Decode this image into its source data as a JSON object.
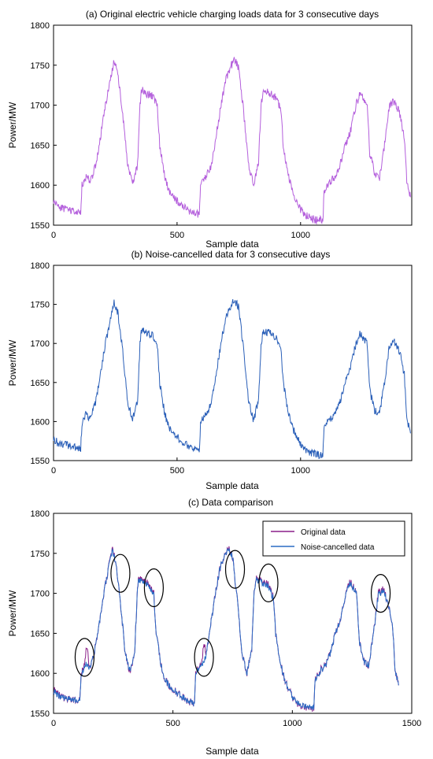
{
  "chart_data": [
    {
      "type": "line",
      "title": "(a) Original electric vehicle charging loads data for 3 consecutive days",
      "xlabel": "Sample data",
      "ylabel": "Power/MW",
      "xlim": [
        0,
        1450
      ],
      "ylim": [
        1550,
        1800
      ],
      "xticks": [
        0,
        500,
        1000
      ],
      "yticks": [
        1550,
        1600,
        1650,
        1700,
        1750,
        1800
      ],
      "series": [
        {
          "color": "#b45fdc",
          "x": [
            0,
            20,
            50,
            80,
            110,
            115,
            130,
            150,
            170,
            190,
            210,
            230,
            245,
            260,
            280,
            300,
            320,
            340,
            350,
            355,
            370,
            400,
            420,
            430,
            450,
            470,
            500,
            530,
            560,
            590,
            595,
            600,
            620,
            640,
            660,
            680,
            700,
            720,
            735,
            750,
            770,
            790,
            810,
            830,
            840,
            850,
            870,
            900,
            920,
            930,
            950,
            970,
            1000,
            1030,
            1060,
            1090,
            1095,
            1100,
            1120,
            1140,
            1160,
            1180,
            1200,
            1220,
            1240,
            1270,
            1280,
            1300,
            1320,
            1340,
            1360,
            1380,
            1400,
            1420,
            1430,
            1445
          ],
          "values": [
            1580,
            1573,
            1570,
            1567,
            1565,
            1600,
            1610,
            1605,
            1625,
            1660,
            1700,
            1730,
            1755,
            1740,
            1690,
            1625,
            1600,
            1625,
            1700,
            1720,
            1715,
            1712,
            1700,
            1650,
            1610,
            1590,
            1580,
            1572,
            1566,
            1563,
            1600,
            1605,
            1612,
            1625,
            1665,
            1705,
            1735,
            1750,
            1757,
            1745,
            1690,
            1625,
            1600,
            1630,
            1700,
            1718,
            1715,
            1710,
            1695,
            1650,
            1612,
            1590,
            1570,
            1560,
            1557,
            1556,
            1590,
            1595,
            1605,
            1610,
            1625,
            1650,
            1665,
            1695,
            1715,
            1700,
            1640,
            1615,
            1610,
            1650,
            1700,
            1705,
            1690,
            1660,
            1605,
            1585
          ]
        }
      ]
    },
    {
      "type": "line",
      "title": "(b) Noise-cancelled data for 3 consecutive days",
      "xlabel": "Sample data",
      "ylabel": "Power/MW",
      "xlim": [
        0,
        1450
      ],
      "ylim": [
        1550,
        1800
      ],
      "xticks": [
        0,
        500,
        1000
      ],
      "yticks": [
        1550,
        1600,
        1650,
        1700,
        1750,
        1800
      ],
      "series": [
        {
          "color": "#2a5fb8",
          "x": [
            0,
            20,
            50,
            80,
            110,
            115,
            130,
            150,
            170,
            190,
            210,
            230,
            245,
            260,
            280,
            300,
            320,
            340,
            350,
            355,
            370,
            400,
            420,
            430,
            450,
            470,
            500,
            530,
            560,
            590,
            595,
            600,
            620,
            640,
            660,
            680,
            700,
            720,
            735,
            750,
            770,
            790,
            810,
            830,
            840,
            850,
            870,
            900,
            920,
            930,
            950,
            970,
            1000,
            1030,
            1060,
            1090,
            1095,
            1100,
            1120,
            1140,
            1160,
            1180,
            1200,
            1220,
            1240,
            1270,
            1280,
            1300,
            1320,
            1340,
            1360,
            1380,
            1400,
            1420,
            1430,
            1445
          ],
          "values": [
            1578,
            1572,
            1570,
            1567,
            1565,
            1598,
            1608,
            1605,
            1625,
            1660,
            1700,
            1730,
            1753,
            1740,
            1690,
            1625,
            1602,
            1625,
            1700,
            1718,
            1714,
            1710,
            1698,
            1650,
            1610,
            1590,
            1580,
            1572,
            1566,
            1563,
            1598,
            1604,
            1610,
            1625,
            1665,
            1705,
            1735,
            1750,
            1755,
            1745,
            1690,
            1625,
            1600,
            1630,
            1700,
            1717,
            1714,
            1708,
            1694,
            1650,
            1612,
            1590,
            1570,
            1561,
            1558,
            1557,
            1590,
            1594,
            1604,
            1610,
            1625,
            1650,
            1665,
            1695,
            1713,
            1700,
            1640,
            1615,
            1610,
            1650,
            1698,
            1703,
            1690,
            1660,
            1605,
            1585
          ]
        }
      ]
    },
    {
      "type": "line",
      "title": "(c) Data comparison",
      "xlabel": "Sample data",
      "ylabel": "Power/MW",
      "xlim": [
        0,
        1500
      ],
      "ylim": [
        1550,
        1800
      ],
      "xticks": [
        0,
        500,
        1000,
        1500
      ],
      "yticks": [
        1550,
        1600,
        1650,
        1700,
        1750,
        1800
      ],
      "legend": "top-right",
      "annotations": "circled regions highlighting differences",
      "circles": [
        {
          "x": 130,
          "y": 1620
        },
        {
          "x": 280,
          "y": 1725
        },
        {
          "x": 420,
          "y": 1707
        },
        {
          "x": 630,
          "y": 1620
        },
        {
          "x": 760,
          "y": 1730
        },
        {
          "x": 900,
          "y": 1713
        },
        {
          "x": 1370,
          "y": 1700
        }
      ],
      "series": [
        {
          "name": "Original data",
          "color": "#8a1e88",
          "x": [
            0,
            20,
            50,
            80,
            110,
            115,
            130,
            140,
            150,
            170,
            190,
            210,
            230,
            245,
            260,
            280,
            300,
            320,
            340,
            350,
            355,
            370,
            400,
            420,
            430,
            450,
            470,
            500,
            530,
            560,
            590,
            595,
            600,
            620,
            630,
            640,
            660,
            680,
            700,
            720,
            735,
            750,
            770,
            790,
            810,
            830,
            840,
            850,
            870,
            900,
            920,
            930,
            950,
            970,
            1000,
            1030,
            1060,
            1090,
            1095,
            1100,
            1120,
            1140,
            1160,
            1180,
            1200,
            1220,
            1240,
            1270,
            1280,
            1300,
            1320,
            1340,
            1360,
            1380,
            1400,
            1420,
            1430,
            1445
          ],
          "values": [
            1580,
            1573,
            1570,
            1567,
            1565,
            1600,
            1612,
            1636,
            1605,
            1625,
            1660,
            1700,
            1730,
            1755,
            1740,
            1690,
            1625,
            1600,
            1625,
            1700,
            1720,
            1715,
            1712,
            1700,
            1650,
            1610,
            1590,
            1580,
            1572,
            1566,
            1563,
            1600,
            1605,
            1612,
            1637,
            1625,
            1665,
            1705,
            1735,
            1750,
            1757,
            1745,
            1690,
            1625,
            1600,
            1630,
            1700,
            1718,
            1715,
            1710,
            1695,
            1650,
            1612,
            1590,
            1570,
            1560,
            1557,
            1556,
            1590,
            1595,
            1605,
            1610,
            1625,
            1650,
            1665,
            1695,
            1715,
            1700,
            1640,
            1615,
            1610,
            1650,
            1700,
            1705,
            1690,
            1660,
            1605,
            1585
          ]
        },
        {
          "name": "Noise-cancelled data",
          "color": "#2a6cc4",
          "x": [
            0,
            20,
            50,
            80,
            110,
            115,
            130,
            140,
            150,
            170,
            190,
            210,
            230,
            245,
            260,
            280,
            300,
            320,
            340,
            350,
            355,
            370,
            400,
            420,
            430,
            450,
            470,
            500,
            530,
            560,
            590,
            595,
            600,
            620,
            630,
            640,
            660,
            680,
            700,
            720,
            735,
            750,
            770,
            790,
            810,
            830,
            840,
            850,
            870,
            900,
            920,
            930,
            950,
            970,
            1000,
            1030,
            1060,
            1090,
            1095,
            1100,
            1120,
            1140,
            1160,
            1180,
            1200,
            1220,
            1240,
            1270,
            1280,
            1300,
            1320,
            1340,
            1360,
            1380,
            1400,
            1420,
            1430,
            1445
          ],
          "values": [
            1578,
            1572,
            1570,
            1567,
            1565,
            1598,
            1608,
            1612,
            1605,
            1625,
            1660,
            1700,
            1730,
            1753,
            1740,
            1690,
            1625,
            1602,
            1625,
            1700,
            1718,
            1714,
            1710,
            1698,
            1650,
            1610,
            1590,
            1580,
            1572,
            1566,
            1563,
            1598,
            1604,
            1610,
            1614,
            1625,
            1665,
            1705,
            1735,
            1750,
            1755,
            1745,
            1690,
            1625,
            1600,
            1630,
            1700,
            1717,
            1714,
            1708,
            1694,
            1650,
            1612,
            1590,
            1570,
            1561,
            1558,
            1557,
            1590,
            1594,
            1604,
            1610,
            1625,
            1650,
            1665,
            1695,
            1713,
            1700,
            1640,
            1615,
            1610,
            1650,
            1698,
            1703,
            1690,
            1660,
            1605,
            1585
          ]
        }
      ]
    }
  ]
}
